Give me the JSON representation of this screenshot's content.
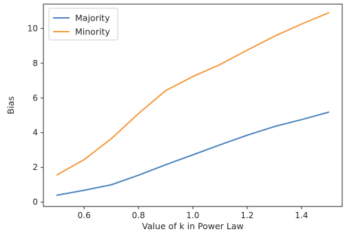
{
  "chart_data": {
    "type": "line",
    "title": "",
    "xlabel": "Value of k in Power Law",
    "ylabel": "Bias",
    "xlim": [
      0.45,
      1.55
    ],
    "ylim": [
      -0.25,
      11.4
    ],
    "xticks": [
      0.6,
      0.8,
      1.0,
      1.2,
      1.4
    ],
    "xtick_labels": [
      "0.6",
      "0.8",
      "1.0",
      "1.2",
      "1.4"
    ],
    "yticks": [
      0,
      2,
      4,
      6,
      8,
      10
    ],
    "ytick_labels": [
      "0",
      "2",
      "4",
      "6",
      "8",
      "10"
    ],
    "grid": false,
    "legend_position": "upper-left",
    "series": [
      {
        "name": "Majority",
        "color": "#4c84bf",
        "x": [
          0.5,
          0.6,
          0.7,
          0.8,
          0.9,
          1.0,
          1.1,
          1.2,
          1.3,
          1.4,
          1.5
        ],
        "y": [
          0.4,
          0.68,
          1.0,
          1.55,
          2.15,
          2.72,
          3.3,
          3.85,
          4.35,
          4.75,
          5.18
        ]
      },
      {
        "name": "Minority",
        "color": "#f59a3e",
        "x": [
          0.5,
          0.6,
          0.7,
          0.8,
          0.9,
          1.0,
          1.1,
          1.2,
          1.3,
          1.4,
          1.5
        ],
        "y": [
          1.57,
          2.45,
          3.65,
          5.1,
          6.42,
          7.23,
          7.92,
          8.75,
          9.55,
          10.25,
          10.9
        ]
      }
    ]
  }
}
